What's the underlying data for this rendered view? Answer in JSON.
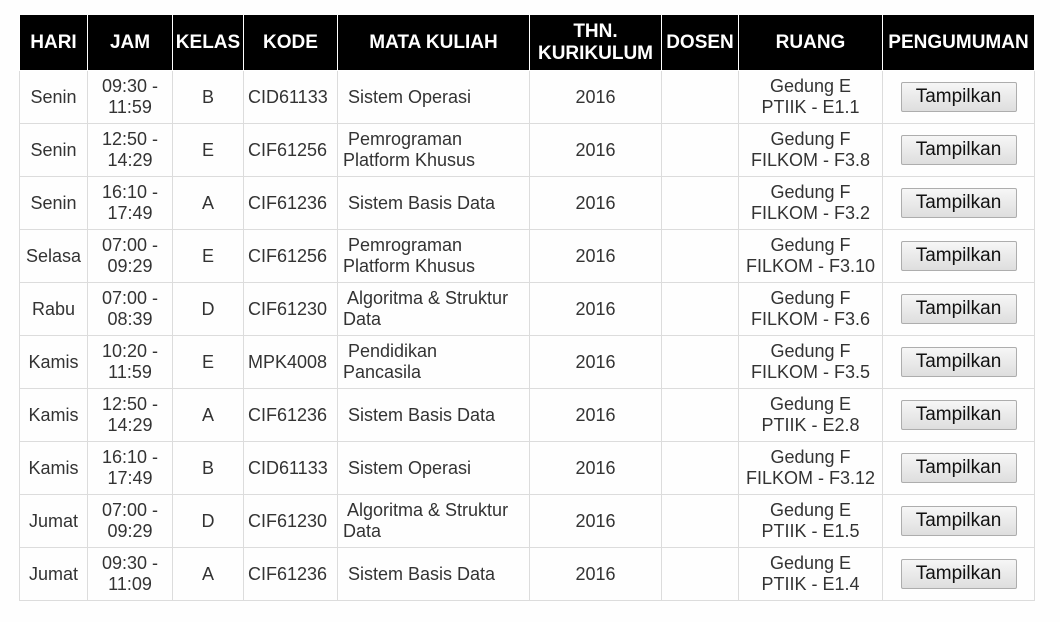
{
  "headers": {
    "hari": "HARI",
    "jam": "JAM",
    "kelas": "KELAS",
    "kode": "KODE",
    "mata_kuliah": "MATA KULIAH",
    "thn_1": "THN.",
    "thn_2": "KURIKULUM",
    "dosen": "DOSEN",
    "ruang": "RUANG",
    "pengumuman": "PENGUMUMAN"
  },
  "button_label": "Tampilkan",
  "rows": [
    {
      "hari": "Senin",
      "jam_1": "09:30 -",
      "jam_2": "11:59",
      "kelas": "B",
      "kode": "CID61133",
      "mk_1": " Sistem Operasi",
      "mk_2": "",
      "thn": "2016",
      "dosen": "",
      "ruang_1": "Gedung E",
      "ruang_2": "PTIIK - E1.1"
    },
    {
      "hari": "Senin",
      "jam_1": "12:50 -",
      "jam_2": "14:29",
      "kelas": "E",
      "kode": "CIF61256",
      "mk_1": " Pemrograman",
      "mk_2": "Platform Khusus",
      "thn": "2016",
      "dosen": "",
      "ruang_1": "Gedung F",
      "ruang_2": "FILKOM - F3.8"
    },
    {
      "hari": "Senin",
      "jam_1": "16:10 -",
      "jam_2": "17:49",
      "kelas": "A",
      "kode": "CIF61236",
      "mk_1": " Sistem Basis Data",
      "mk_2": "",
      "thn": "2016",
      "dosen": "",
      "ruang_1": "Gedung F",
      "ruang_2": "FILKOM - F3.2"
    },
    {
      "hari": "Selasa",
      "jam_1": "07:00 -",
      "jam_2": "09:29",
      "kelas": "E",
      "kode": "CIF61256",
      "mk_1": " Pemrograman",
      "mk_2": "Platform Khusus",
      "thn": "2016",
      "dosen": "",
      "ruang_1": "Gedung F",
      "ruang_2": "FILKOM - F3.10"
    },
    {
      "hari": "Rabu",
      "jam_1": "07:00 -",
      "jam_2": "08:39",
      "kelas": "D",
      "kode": "CIF61230",
      "mk_1": " Algoritma & Struktur",
      "mk_2": "Data",
      "thn": "2016",
      "dosen": "",
      "ruang_1": "Gedung F",
      "ruang_2": "FILKOM - F3.6"
    },
    {
      "hari": "Kamis",
      "jam_1": "10:20 -",
      "jam_2": "11:59",
      "kelas": "E",
      "kode": "MPK4008",
      "mk_1": " Pendidikan",
      "mk_2": "Pancasila",
      "thn": "2016",
      "dosen": "",
      "ruang_1": "Gedung F",
      "ruang_2": "FILKOM - F3.5"
    },
    {
      "hari": "Kamis",
      "jam_1": "12:50 -",
      "jam_2": "14:29",
      "kelas": "A",
      "kode": "CIF61236",
      "mk_1": " Sistem Basis Data",
      "mk_2": "",
      "thn": "2016",
      "dosen": "",
      "ruang_1": "Gedung E",
      "ruang_2": "PTIIK - E2.8"
    },
    {
      "hari": "Kamis",
      "jam_1": "16:10 -",
      "jam_2": "17:49",
      "kelas": "B",
      "kode": "CID61133",
      "mk_1": " Sistem Operasi",
      "mk_2": "",
      "thn": "2016",
      "dosen": "",
      "ruang_1": "Gedung F",
      "ruang_2": "FILKOM - F3.12"
    },
    {
      "hari": "Jumat",
      "jam_1": "07:00 -",
      "jam_2": "09:29",
      "kelas": "D",
      "kode": "CIF61230",
      "mk_1": " Algoritma & Struktur",
      "mk_2": "Data",
      "thn": "2016",
      "dosen": "",
      "ruang_1": "Gedung E",
      "ruang_2": "PTIIK - E1.5"
    },
    {
      "hari": "Jumat",
      "jam_1": "09:30 -",
      "jam_2": "11:09",
      "kelas": "A",
      "kode": "CIF61236",
      "mk_1": " Sistem Basis Data",
      "mk_2": "",
      "thn": "2016",
      "dosen": "",
      "ruang_1": "Gedung E",
      "ruang_2": "PTIIK - E1.4"
    }
  ],
  "colors": {
    "header_bg": "#000000",
    "header_text": "#ffffff",
    "cell_border": "#dcdcdc",
    "cell_text": "#333333"
  }
}
